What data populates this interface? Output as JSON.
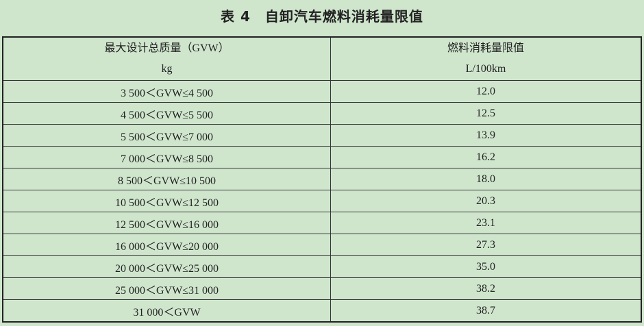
{
  "title": "表 4　自卸汽车燃料消耗量限值",
  "table": {
    "headers": [
      {
        "label": "最大设计总质量（GVW）",
        "unit": "kg"
      },
      {
        "label": "燃料消耗量限值",
        "unit": "L/100km"
      }
    ],
    "rows": [
      {
        "gvw": "3 500＜GVW≤4 500",
        "limit": "12.0"
      },
      {
        "gvw": "4 500＜GVW≤5 500",
        "limit": "12.5"
      },
      {
        "gvw": "5 500＜GVW≤7 000",
        "limit": "13.9"
      },
      {
        "gvw": "7 000＜GVW≤8 500",
        "limit": "16.2"
      },
      {
        "gvw": "8 500＜GVW≤10 500",
        "limit": "18.0"
      },
      {
        "gvw": "10 500＜GVW≤12 500",
        "limit": "20.3"
      },
      {
        "gvw": "12 500＜GVW≤16 000",
        "limit": "23.1"
      },
      {
        "gvw": "16 000＜GVW≤20 000",
        "limit": "27.3"
      },
      {
        "gvw": "20 000＜GVW≤25 000",
        "limit": "35.0"
      },
      {
        "gvw": "25 000＜GVW≤31 000",
        "limit": "38.2"
      },
      {
        "gvw": "31 000＜GVW",
        "limit": "38.7"
      }
    ]
  }
}
